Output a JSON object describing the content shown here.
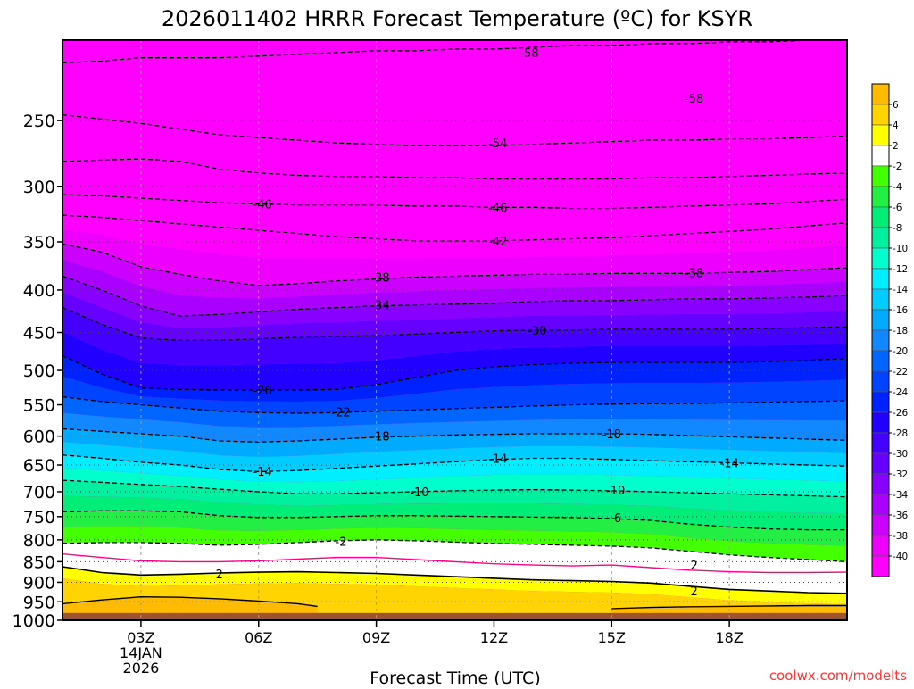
{
  "chart_data": {
    "type": "heatmap",
    "title": "2026011402 HRRR Forecast Temperature (ºC) for KSYR",
    "xlabel": "Forecast Time (UTC)",
    "ylabel": "",
    "credit": "coolwx.com/modelts",
    "y_scale": "log",
    "ylim": [
      1000,
      200
    ],
    "xlim": [
      1,
      21
    ],
    "y_ticks": [
      250,
      300,
      350,
      400,
      450,
      500,
      550,
      600,
      650,
      700,
      750,
      800,
      850,
      900,
      950,
      1000
    ],
    "x_ticks": [
      {
        "hour": 3,
        "label": "03Z",
        "date_line1": "14JAN",
        "date_line2": "2026"
      },
      {
        "hour": 6,
        "label": "06Z"
      },
      {
        "hour": 9,
        "label": "09Z"
      },
      {
        "hour": 12,
        "label": "12Z"
      },
      {
        "hour": 15,
        "label": "15Z"
      },
      {
        "hour": 18,
        "label": "18Z"
      }
    ],
    "grid": true,
    "surface_pressure": 980,
    "colorbar": {
      "placement": "right",
      "bands": [
        {
          "lo": 6,
          "hi": 8,
          "color": "#ffbb00"
        },
        {
          "lo": 4,
          "hi": 6,
          "color": "#ffd400"
        },
        {
          "lo": 2,
          "hi": 4,
          "color": "#ffff00"
        },
        {
          "lo": -2,
          "hi": 2,
          "color": "#ffffff"
        },
        {
          "lo": -4,
          "hi": -2,
          "color": "#44ff00"
        },
        {
          "lo": -6,
          "hi": -4,
          "color": "#22ee44"
        },
        {
          "lo": -8,
          "hi": -6,
          "color": "#00ee77"
        },
        {
          "lo": -10,
          "hi": -8,
          "color": "#00f0a0"
        },
        {
          "lo": -12,
          "hi": -10,
          "color": "#00ffcc"
        },
        {
          "lo": -14,
          "hi": -12,
          "color": "#00eeff"
        },
        {
          "lo": -16,
          "hi": -14,
          "color": "#00ccff"
        },
        {
          "lo": -18,
          "hi": -16,
          "color": "#00aaff"
        },
        {
          "lo": -20,
          "hi": -18,
          "color": "#1188ff"
        },
        {
          "lo": -22,
          "hi": -20,
          "color": "#0066ff"
        },
        {
          "lo": -24,
          "hi": -22,
          "color": "#0044ff"
        },
        {
          "lo": -26,
          "hi": -24,
          "color": "#0022ff"
        },
        {
          "lo": -28,
          "hi": -26,
          "color": "#2200ff"
        },
        {
          "lo": -30,
          "hi": -28,
          "color": "#4400ff"
        },
        {
          "lo": -32,
          "hi": -30,
          "color": "#6600ff"
        },
        {
          "lo": -34,
          "hi": -32,
          "color": "#8800ff"
        },
        {
          "lo": -36,
          "hi": -34,
          "color": "#aa00ff"
        },
        {
          "lo": -38,
          "hi": -36,
          "color": "#cc00ff"
        },
        {
          "lo": -40,
          "hi": -38,
          "color": "#ee00ff"
        },
        {
          "lo": -62,
          "hi": -40,
          "color": "#ff00ff"
        }
      ],
      "tick_labels": [
        "6",
        "4",
        "2",
        "-2",
        "-4",
        "-6",
        "-8",
        "-10",
        "-12",
        "-14",
        "-16",
        "-18",
        "-20",
        "-22",
        "-24",
        "-26",
        "-28",
        "-30",
        "-32",
        "-34",
        "-36",
        "-38",
        "-40"
      ]
    },
    "isotherms": [
      {
        "value": -58,
        "style": "dashed",
        "pressure": [
          213,
          212,
          210,
          210,
          210,
          209,
          208,
          207,
          206,
          206,
          205,
          205,
          204,
          203,
          203,
          202,
          202,
          201,
          201,
          200,
          200
        ]
      },
      {
        "value": -54,
        "style": "dashed",
        "pressure": [
          246,
          249,
          252,
          256,
          260,
          262,
          264,
          266,
          267,
          268,
          268,
          268,
          267,
          266,
          265,
          264,
          264,
          263,
          263,
          262,
          261
        ]
      },
      {
        "value": -50,
        "style": "dashed",
        "pressure": [
          280,
          279,
          278,
          280,
          286,
          289,
          291,
          292,
          292,
          293,
          293,
          294,
          294,
          294,
          294,
          293,
          293,
          292,
          291,
          290,
          289
        ]
      },
      {
        "value": -46,
        "style": "dashed",
        "pressure": [
          307,
          308,
          310,
          312,
          314,
          315,
          316,
          316,
          316,
          317,
          317,
          318,
          318,
          319,
          319,
          318,
          317,
          316,
          315,
          313,
          311
        ]
      },
      {
        "value": -42,
        "style": "dashed",
        "pressure": [
          325,
          327,
          330,
          333,
          336,
          339,
          342,
          345,
          347,
          349,
          349,
          349,
          348,
          347,
          346,
          344,
          342,
          340,
          338,
          335,
          332
        ]
      },
      {
        "value": -38,
        "style": "dashed",
        "pressure": [
          352,
          360,
          375,
          383,
          390,
          395,
          393,
          390,
          388,
          386,
          385,
          384,
          383,
          383,
          382,
          382,
          382,
          381,
          380,
          378,
          376
        ]
      },
      {
        "value": -34,
        "style": "dashed",
        "pressure": [
          385,
          400,
          418,
          430,
          428,
          425,
          422,
          420,
          418,
          417,
          416,
          415,
          413,
          412,
          412,
          411,
          410,
          410,
          409,
          408,
          406
        ]
      },
      {
        "value": -30,
        "style": "dashed",
        "pressure": [
          420,
          440,
          457,
          460,
          460,
          458,
          456,
          455,
          454,
          452,
          450,
          448,
          447,
          447,
          446,
          446,
          446,
          446,
          445,
          444,
          443
        ]
      },
      {
        "value": -26,
        "style": "dashed",
        "pressure": [
          480,
          505,
          525,
          527,
          528,
          528,
          528,
          527,
          520,
          510,
          500,
          495,
          492,
          490,
          489,
          489,
          489,
          489,
          488,
          486,
          484
        ]
      },
      {
        "value": -22,
        "style": "dashed",
        "pressure": [
          538,
          545,
          550,
          555,
          560,
          562,
          563,
          562,
          560,
          558,
          556,
          554,
          552,
          550,
          549,
          548,
          548,
          547,
          546,
          545,
          544
        ]
      },
      {
        "value": -18,
        "style": "dashed",
        "pressure": [
          588,
          592,
          596,
          600,
          608,
          610,
          608,
          605,
          602,
          600,
          598,
          597,
          596,
          596,
          596,
          597,
          599,
          601,
          603,
          605,
          607
        ]
      },
      {
        "value": -14,
        "style": "dashed",
        "pressure": [
          632,
          638,
          645,
          650,
          658,
          662,
          660,
          656,
          652,
          648,
          644,
          640,
          638,
          638,
          640,
          642,
          644,
          646,
          648,
          650,
          652
        ]
      },
      {
        "value": -10,
        "style": "dashed",
        "pressure": [
          678,
          682,
          686,
          690,
          695,
          700,
          704,
          704,
          702,
          700,
          698,
          697,
          696,
          697,
          698,
          700,
          702,
          704,
          706,
          708,
          710
        ]
      },
      {
        "value": -6,
        "style": "dashed",
        "pressure": [
          740,
          738,
          738,
          740,
          748,
          752,
          752,
          750,
          748,
          748,
          749,
          750,
          751,
          752,
          754,
          758,
          766,
          772,
          776,
          778,
          778
        ]
      },
      {
        "value": -2,
        "style": "dashed",
        "pressure": [
          808,
          806,
          806,
          808,
          812,
          810,
          806,
          802,
          800,
          802,
          805,
          808,
          810,
          812,
          814,
          818,
          826,
          834,
          840,
          845,
          850
        ]
      },
      {
        "value": 0,
        "style": "solid-magenta",
        "pressure": [
          832,
          840,
          848,
          850,
          850,
          848,
          844,
          840,
          840,
          845,
          850,
          855,
          858,
          860,
          858,
          864,
          870,
          874,
          876,
          876,
          875
        ]
      },
      {
        "value": 2,
        "style": "solid",
        "pressure": [
          862,
          876,
          882,
          880,
          877,
          875,
          874,
          876,
          878,
          882,
          886,
          890,
          894,
          896,
          898,
          902,
          910,
          918,
          922,
          926,
          928
        ]
      }
    ],
    "contour_labels": [
      {
        "value": -58,
        "text": "-58",
        "hour": 12.9,
        "pressure": 207
      },
      {
        "value": -58,
        "text": "-58",
        "hour": 17.1,
        "pressure": 235
      },
      {
        "value": -54,
        "text": "-54",
        "hour": 12.1,
        "pressure": 266
      },
      {
        "value": -46,
        "text": "-46",
        "hour": 6.1,
        "pressure": 315
      },
      {
        "value": -46,
        "text": "-46",
        "hour": 12.1,
        "pressure": 318
      },
      {
        "value": -42,
        "text": "-42",
        "hour": 12.1,
        "pressure": 349
      },
      {
        "value": -38,
        "text": "-38",
        "hour": 9.1,
        "pressure": 386
      },
      {
        "value": -38,
        "text": "-38",
        "hour": 17.1,
        "pressure": 381
      },
      {
        "value": -34,
        "text": "-34",
        "hour": 9.1,
        "pressure": 417
      },
      {
        "value": -30,
        "text": "-30",
        "hour": 13.1,
        "pressure": 447
      },
      {
        "value": -26,
        "text": "-26",
        "hour": 6.1,
        "pressure": 528
      },
      {
        "value": -22,
        "text": "-22",
        "hour": 8.1,
        "pressure": 561
      },
      {
        "value": -18,
        "text": "-18",
        "hour": 9.1,
        "pressure": 600
      },
      {
        "value": -18,
        "text": "-18",
        "hour": 15.0,
        "pressure": 596
      },
      {
        "value": -14,
        "text": "-14",
        "hour": 6.1,
        "pressure": 661
      },
      {
        "value": -14,
        "text": "-14",
        "hour": 12.1,
        "pressure": 638
      },
      {
        "value": -14,
        "text": "-14",
        "hour": 18.0,
        "pressure": 646
      },
      {
        "value": -10,
        "text": "-10",
        "hour": 10.1,
        "pressure": 700
      },
      {
        "value": -10,
        "text": "-10",
        "hour": 15.1,
        "pressure": 697
      },
      {
        "value": -6,
        "text": "-6",
        "hour": 15.1,
        "pressure": 752
      },
      {
        "value": -2,
        "text": "-2",
        "hour": 8.1,
        "pressure": 803
      },
      {
        "value": 2,
        "text": "2",
        "hour": 17.1,
        "pressure": 858
      },
      {
        "value": 2,
        "text": "2",
        "hour": 5.0,
        "pressure": 879
      },
      {
        "value": 2,
        "text": "2",
        "hour": 17.1,
        "pressure": 922
      }
    ],
    "warm_pockets_6C": [
      {
        "hour": [
          1,
          2,
          3,
          4,
          5,
          6,
          7,
          7.5
        ],
        "pressure_top": [
          955,
          945,
          937,
          938,
          942,
          948,
          955,
          962
        ]
      },
      {
        "hour": [
          15,
          16,
          17,
          18,
          19,
          20,
          21
        ],
        "pressure_top": [
          968,
          965,
          963,
          962,
          961,
          960,
          960
        ]
      }
    ]
  }
}
